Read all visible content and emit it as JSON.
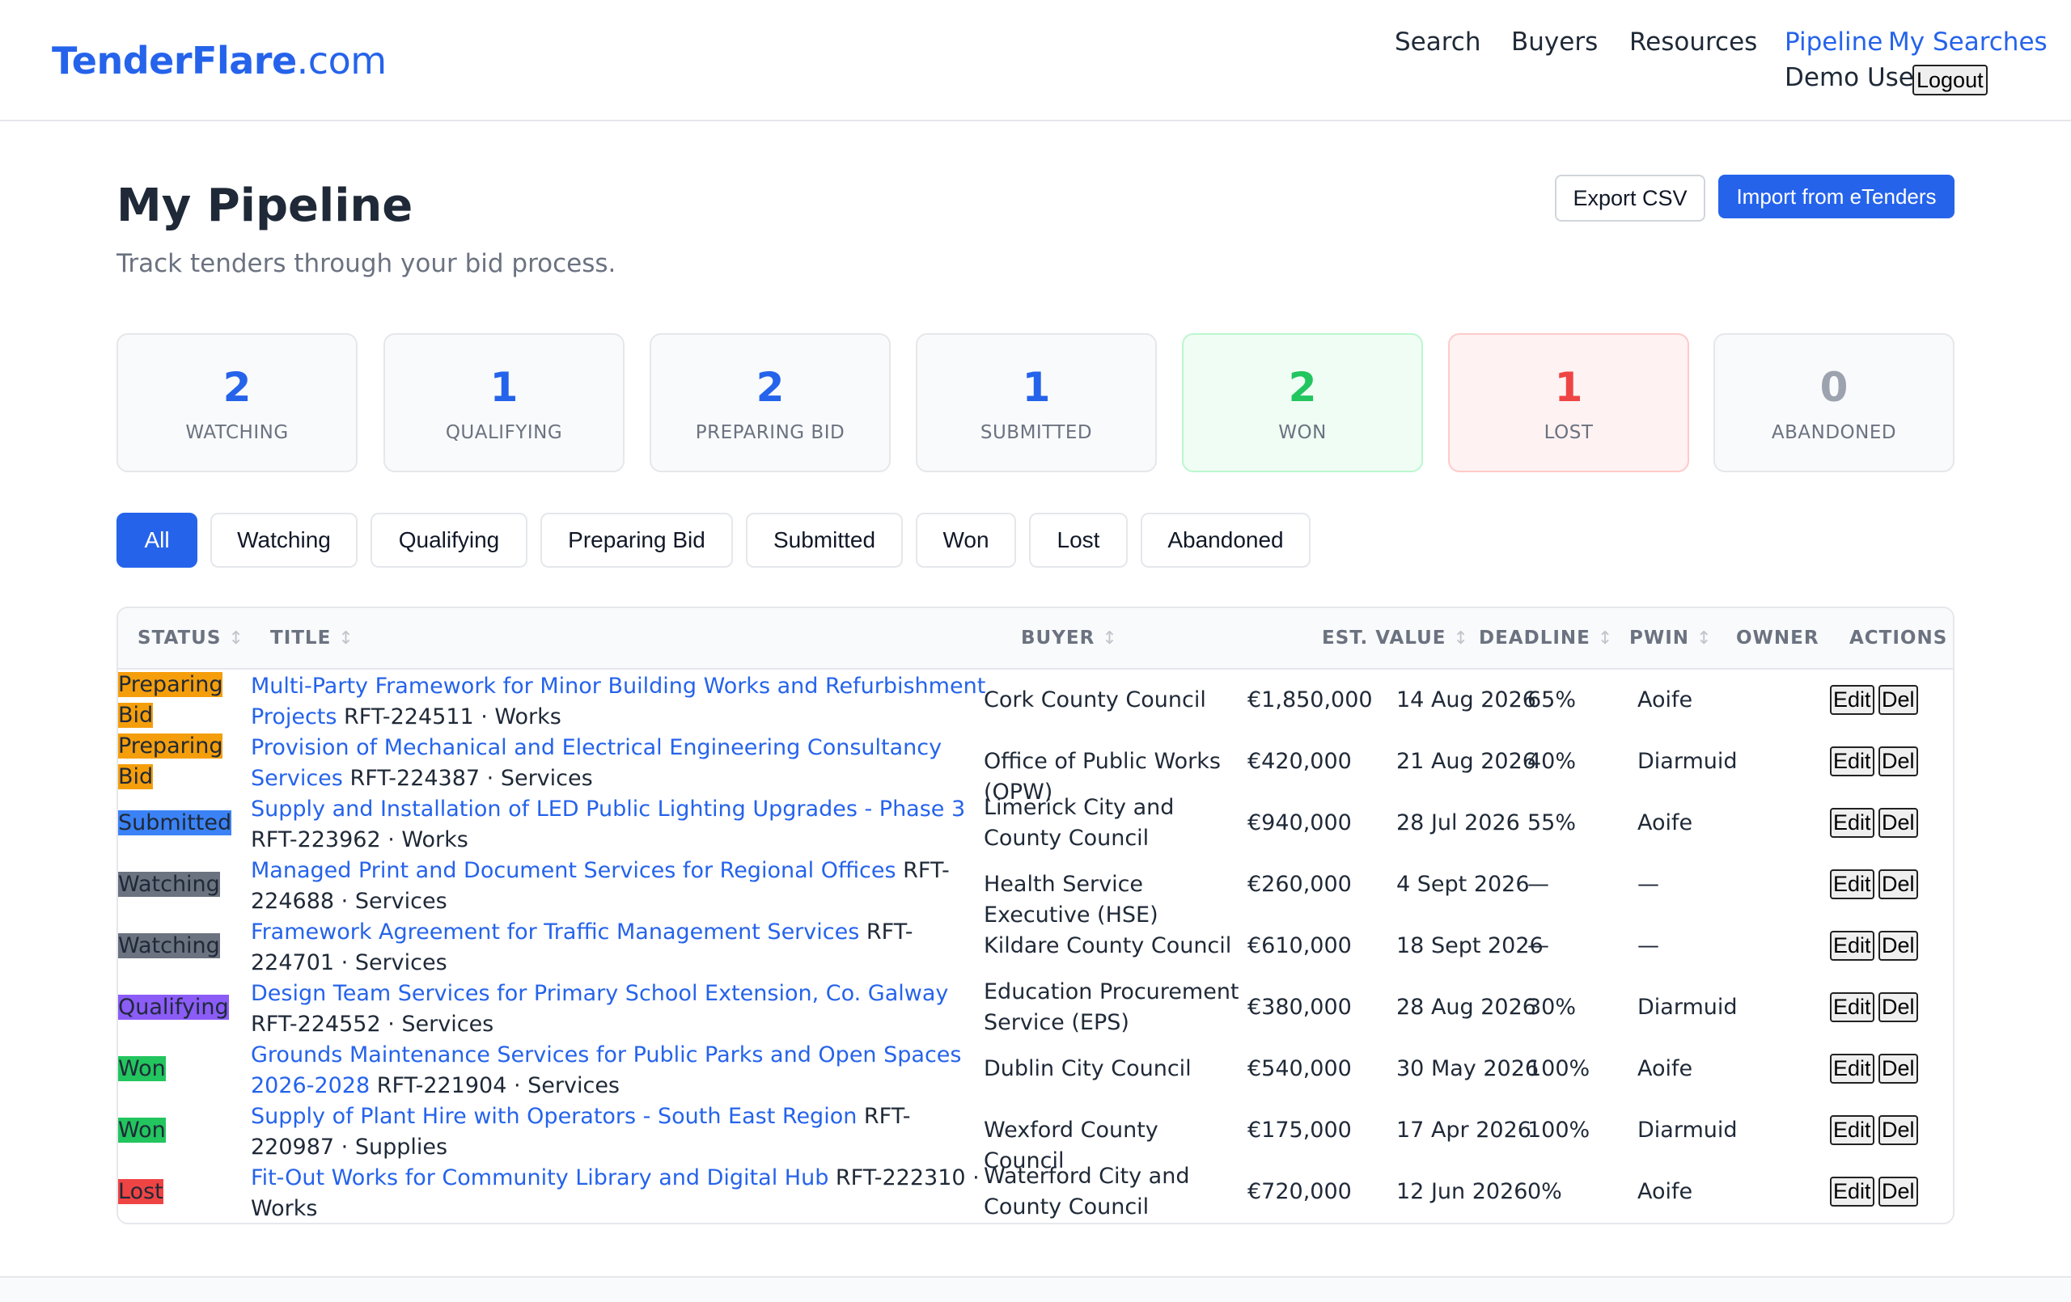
{
  "header": {
    "logo_main": "TenderFlare",
    "logo_domain": ".com",
    "nav": [
      "Search",
      "Buyers",
      "Resources",
      "Pipeline",
      "My Searches"
    ],
    "user_name": "Demo User",
    "logout_label": "Logout"
  },
  "page": {
    "title": "My Pipeline",
    "subtitle": "Track tenders through your bid process.",
    "export_label": "Export CSV",
    "import_label": "Import from eTenders"
  },
  "stats": [
    {
      "count": "2",
      "label": "WATCHING",
      "color": "#2563eb"
    },
    {
      "count": "1",
      "label": "QUALIFYING",
      "color": "#2563eb"
    },
    {
      "count": "2",
      "label": "PREPARING BID",
      "color": "#2563eb"
    },
    {
      "count": "1",
      "label": "SUBMITTED",
      "color": "#2563eb"
    },
    {
      "count": "2",
      "label": "WON",
      "color": "#22c55e"
    },
    {
      "count": "1",
      "label": "LOST",
      "color": "#ef4444"
    },
    {
      "count": "0",
      "label": "ABANDONED",
      "color": "#9ca3af"
    }
  ],
  "filters": [
    "All",
    "Watching",
    "Qualifying",
    "Preparing Bid",
    "Submitted",
    "Won",
    "Lost",
    "Abandoned"
  ],
  "table": {
    "columns": [
      "STATUS",
      "TITLE",
      "BUYER",
      "EST. VALUE",
      "DEADLINE",
      "PWIN",
      "OWNER",
      "ACTIONS"
    ],
    "sort_glyph": "↕",
    "edit_label": "Edit",
    "del_label": "Del",
    "status_colors": {
      "Preparing Bid": "#f59e0b",
      "Submitted": "#3b82f6",
      "Watching": "#6b7280",
      "Qualifying": "#8b5cf6",
      "Won": "#22c55e",
      "Lost": "#ef4444"
    },
    "rows": [
      {
        "status": "Preparing Bid",
        "title": "Multi-Party Framework for Minor Building Works and Refurbishment Projects",
        "meta": " RFT-224511 · Works",
        "buyer": "Cork County Council",
        "value": "€1,850,000",
        "deadline": "14 Aug 2026",
        "pwin": "65%",
        "owner": "Aoife"
      },
      {
        "status": "Preparing Bid",
        "title": "Provision of Mechanical and Electrical Engineering Consultancy Services",
        "meta": " RFT-224387 · Services",
        "buyer": "Office of Public Works (OPW)",
        "value": "€420,000",
        "deadline": "21 Aug 2026",
        "pwin": "40%",
        "owner": "Diarmuid"
      },
      {
        "status": "Submitted",
        "title": "Supply and Installation of LED Public Lighting Upgrades - Phase 3",
        "meta": " RFT-223962 · Works",
        "buyer": "Limerick City and County Council",
        "value": "€940,000",
        "deadline": "28 Jul 2026",
        "pwin": "55%",
        "owner": "Aoife"
      },
      {
        "status": "Watching",
        "title": "Managed Print and Document Services for Regional Offices",
        "meta": " RFT-224688 · Services",
        "buyer": "Health Service Executive (HSE)",
        "value": "€260,000",
        "deadline": "4 Sept 2026",
        "pwin": "—",
        "owner": "—"
      },
      {
        "status": "Watching",
        "title": "Framework Agreement for Traffic Management Services",
        "meta": " RFT-224701 · Services",
        "buyer": "Kildare County Council",
        "value": "€610,000",
        "deadline": "18 Sept 2026",
        "pwin": "—",
        "owner": "—"
      },
      {
        "status": "Qualifying",
        "title": "Design Team Services for Primary School Extension, Co. Galway",
        "meta": " RFT-224552 · Services",
        "buyer": "Education Procurement Service (EPS)",
        "value": "€380,000",
        "deadline": "28 Aug 2026",
        "pwin": "30%",
        "owner": "Diarmuid"
      },
      {
        "status": "Won",
        "title": "Grounds Maintenance Services for Public Parks and Open Spaces 2026-2028",
        "meta": " RFT-221904 · Services",
        "buyer": "Dublin City Council",
        "value": "€540,000",
        "deadline": "30 May 2026",
        "pwin": "100%",
        "owner": "Aoife"
      },
      {
        "status": "Won",
        "title": "Supply of Plant Hire with Operators - South East Region",
        "meta": " RFT-220987 · Supplies",
        "buyer": "Wexford County Council",
        "value": "€175,000",
        "deadline": "17 Apr 2026",
        "pwin": "100%",
        "owner": "Diarmuid"
      },
      {
        "status": "Lost",
        "title": "Fit-Out Works for Community Library and Digital Hub",
        "meta": " RFT-222310 · Works",
        "buyer": "Waterford City and County Council",
        "value": "€720,000",
        "deadline": "12 Jun 2026",
        "pwin": "0%",
        "owner": "Aoife"
      }
    ]
  }
}
